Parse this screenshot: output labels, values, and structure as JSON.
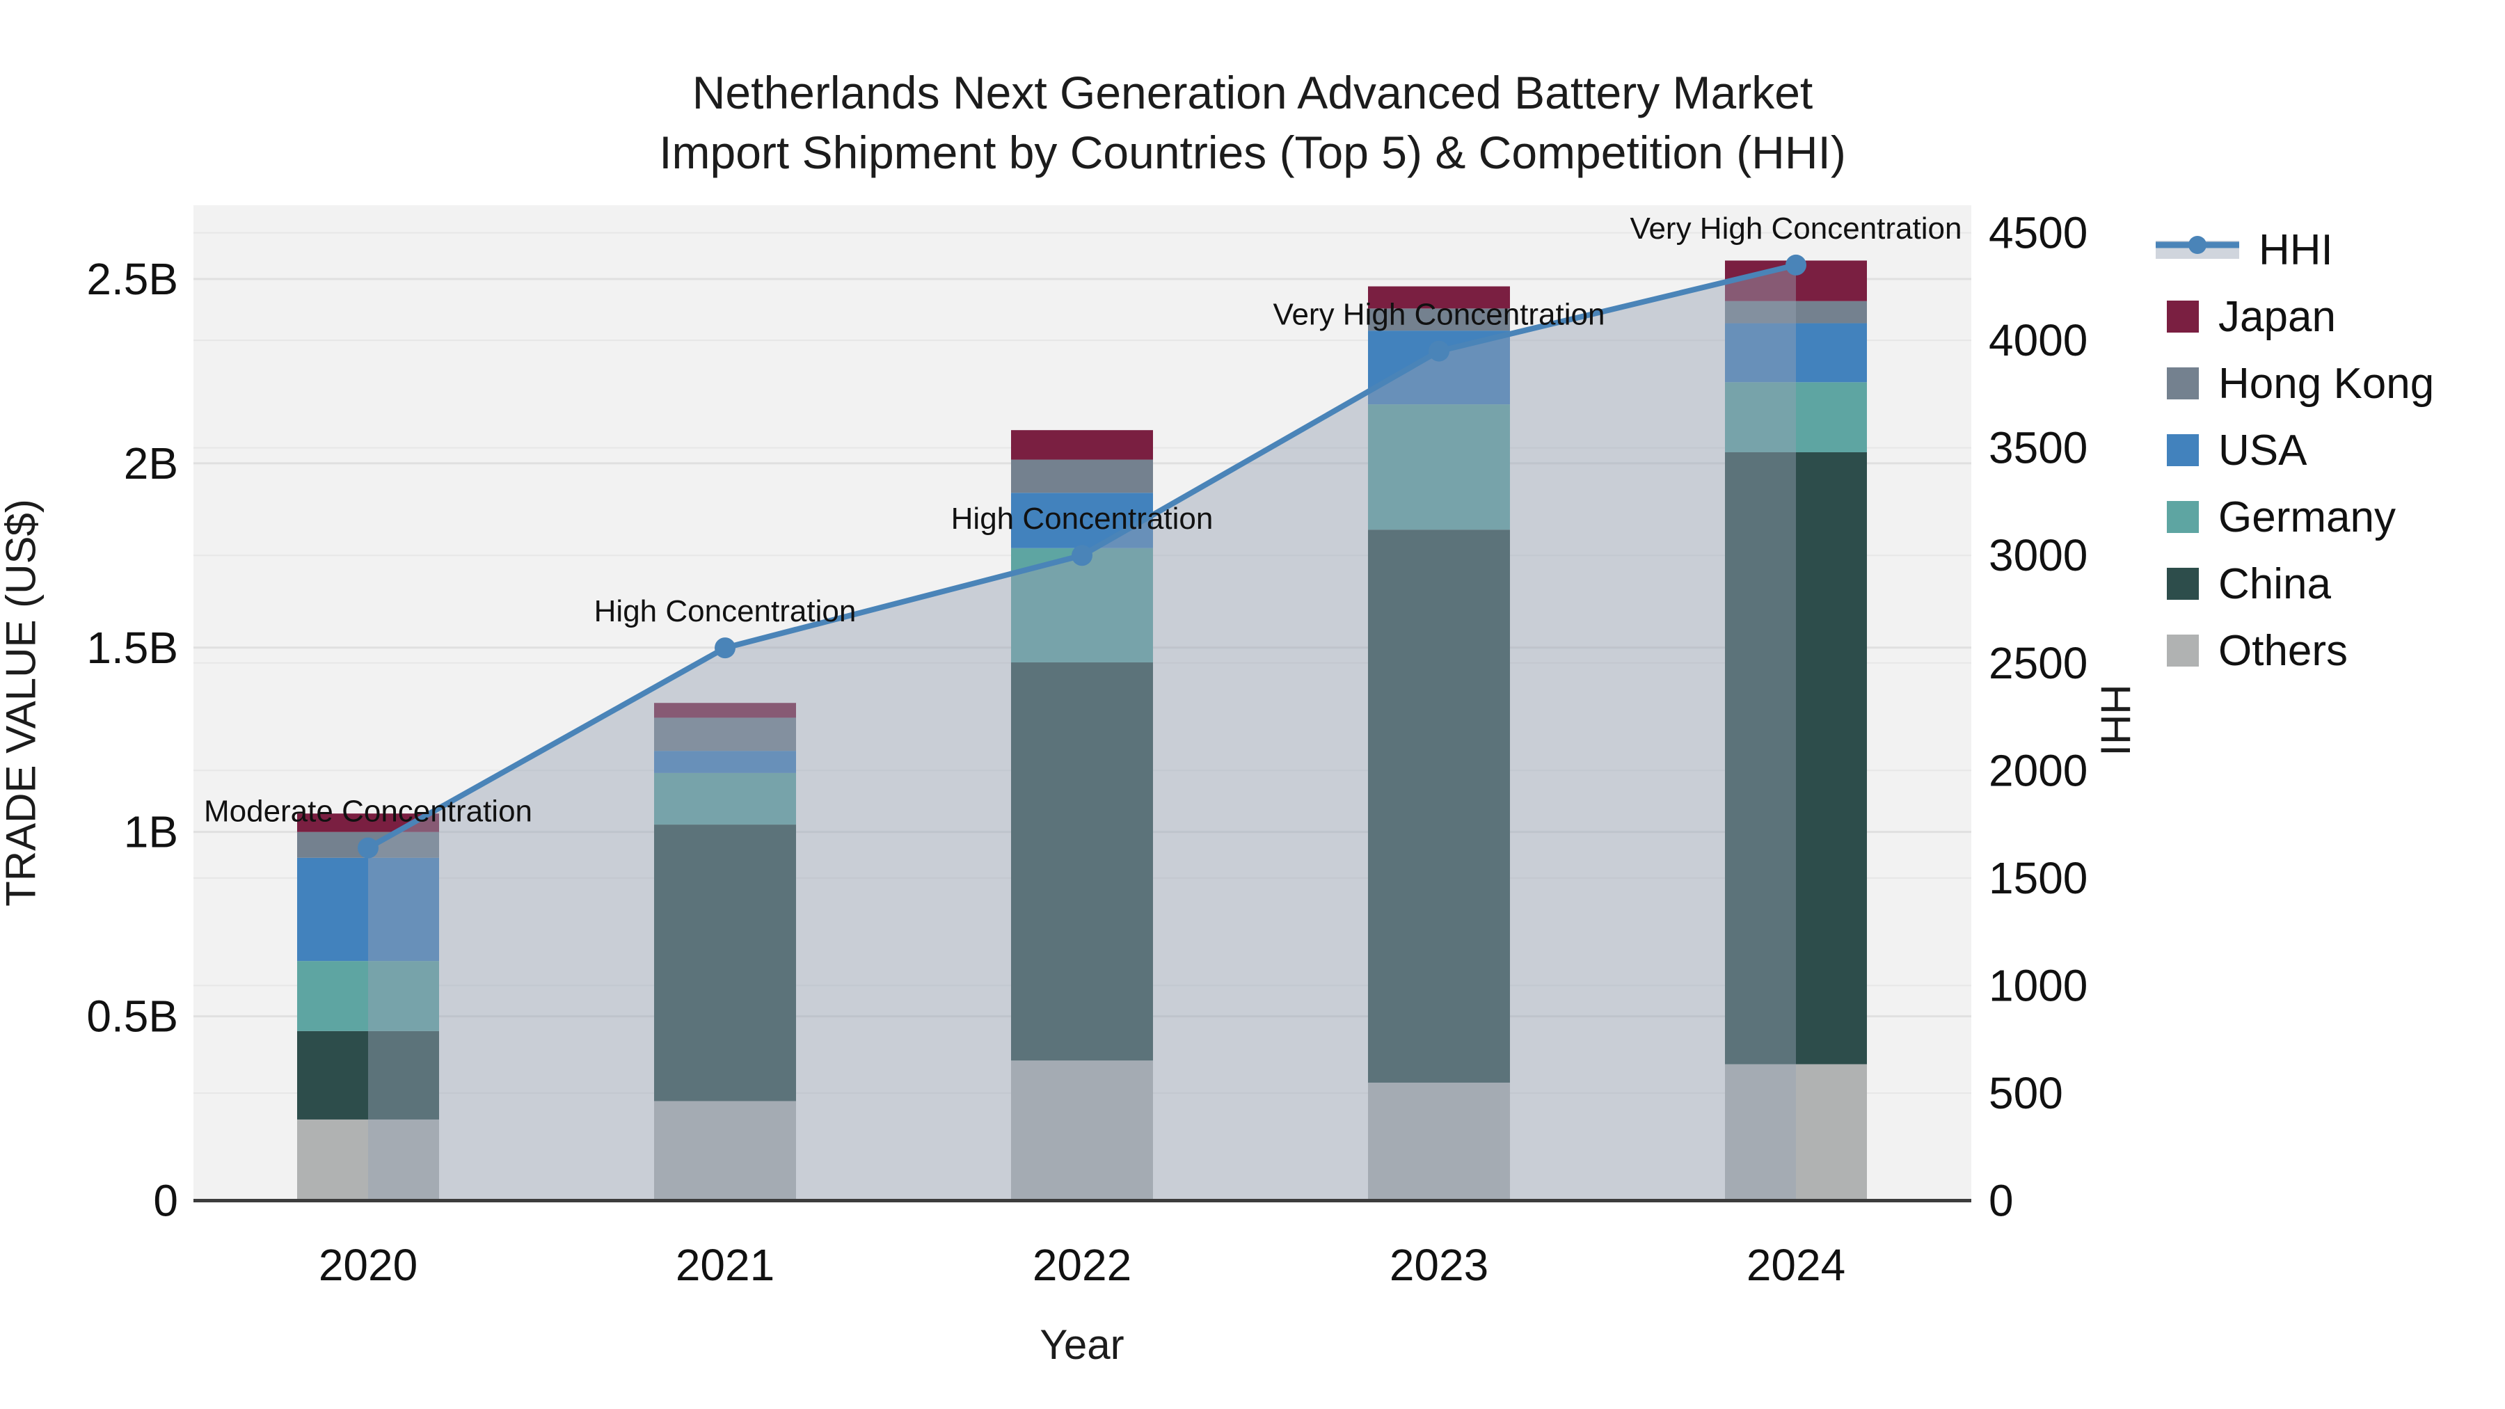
{
  "title": {
    "line1": "Netherlands Next Generation Advanced Battery Market",
    "line2": "Import Shipment by Countries (Top 5) & Competition (HHI)"
  },
  "axes": {
    "left": {
      "label": "TRADE VALUE (US$)",
      "ticks": [
        {
          "value": 0,
          "label": "0"
        },
        {
          "value": 0.5,
          "label": "0.5B"
        },
        {
          "value": 1,
          "label": "1B"
        },
        {
          "value": 1.5,
          "label": "1.5B"
        },
        {
          "value": 2,
          "label": "2B"
        },
        {
          "value": 2.5,
          "label": "2.5B"
        }
      ]
    },
    "right": {
      "label": "HHI",
      "ticks": [
        0,
        500,
        1000,
        1500,
        2000,
        2500,
        3000,
        3500,
        4000,
        4500
      ]
    },
    "x": {
      "label": "Year"
    }
  },
  "legend": {
    "items": [
      {
        "label": "HHI",
        "type": "line",
        "color_key": "hhi_line"
      },
      {
        "label": "Japan",
        "type": "square",
        "color_key": "japan"
      },
      {
        "label": "Hong Kong",
        "type": "square",
        "color_key": "hong_kong"
      },
      {
        "label": "USA",
        "type": "square",
        "color_key": "usa"
      },
      {
        "label": "Germany",
        "type": "square",
        "color_key": "germany"
      },
      {
        "label": "China",
        "type": "square",
        "color_key": "china"
      },
      {
        "label": "Others",
        "type": "square",
        "color_key": "others"
      }
    ]
  },
  "colors": {
    "japan": "#7a1f41",
    "hong_kong": "#74818f",
    "usa": "#4282bd",
    "germany": "#5ea5a2",
    "china": "#2d4d4b",
    "others": "#b0b2b2",
    "hhi_line": "#4a84b8",
    "hhi_area": "rgba(150,162,180,0.45)",
    "plot_bg": "#f2f2f2",
    "grid_major": "#e0e0e0",
    "grid_right": "#e7e7e7",
    "axis_line": "#3c3c3c",
    "text": "#111111"
  },
  "chart_data": {
    "type": "bar+line",
    "title": "Netherlands Next Generation Advanced Battery Market — Import Shipment by Countries (Top 5) & Competition (HHI)",
    "categories": [
      "2020",
      "2021",
      "2022",
      "2023",
      "2024"
    ],
    "unit": "billions of US$",
    "stack_order_bottom_to_top": [
      "Others",
      "China",
      "Germany",
      "USA",
      "Hong Kong",
      "Japan"
    ],
    "series": [
      {
        "name": "Others",
        "color_key": "others",
        "values": [
          0.22,
          0.27,
          0.38,
          0.32,
          0.37
        ]
      },
      {
        "name": "China",
        "color_key": "china",
        "values": [
          0.24,
          0.75,
          1.08,
          1.5,
          1.66
        ]
      },
      {
        "name": "Germany",
        "color_key": "germany",
        "values": [
          0.19,
          0.14,
          0.31,
          0.34,
          0.19
        ]
      },
      {
        "name": "USA",
        "color_key": "usa",
        "values": [
          0.28,
          0.06,
          0.15,
          0.2,
          0.16
        ]
      },
      {
        "name": "Hong Kong",
        "color_key": "hong_kong",
        "values": [
          0.07,
          0.09,
          0.09,
          0.06,
          0.06
        ]
      },
      {
        "name": "Japan",
        "color_key": "japan",
        "values": [
          0.05,
          0.04,
          0.08,
          0.06,
          0.11
        ]
      }
    ],
    "bar_totals": [
      1.05,
      1.35,
      2.09,
      2.48,
      2.55
    ],
    "hhi": {
      "name": "HHI",
      "axis": "right",
      "values": [
        1640,
        2570,
        3000,
        3950,
        4350
      ]
    },
    "annotations": [
      {
        "year": "2020",
        "text": "Moderate Concentration"
      },
      {
        "year": "2021",
        "text": "High Concentration"
      },
      {
        "year": "2022",
        "text": "High Concentration"
      },
      {
        "year": "2023",
        "text": "Very High Concentration"
      },
      {
        "year": "2024",
        "text": "Very High Concentration"
      }
    ],
    "xlabel": "Year",
    "ylabel": "TRADE VALUE (US$)",
    "y2label": "HHI",
    "ylim": [
      0,
      2.7
    ],
    "y2lim": [
      0,
      4628
    ],
    "grid": true,
    "legend_position": "right"
  }
}
